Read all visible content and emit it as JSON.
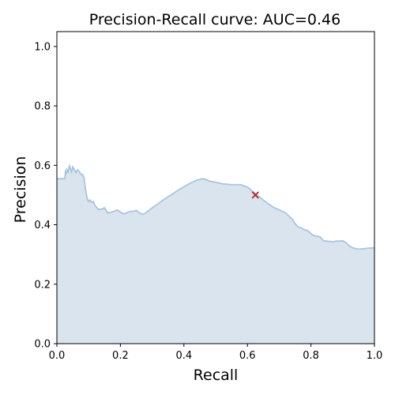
{
  "chart_data": {
    "type": "area",
    "title": "Precision-Recall curve: AUC=0.46",
    "xlabel": "Recall",
    "ylabel": "Precision",
    "xlim": [
      0,
      1
    ],
    "ylim": [
      0,
      1.05
    ],
    "xticks": [
      "0.0",
      "0.2",
      "0.4",
      "0.6",
      "0.8",
      "1.0"
    ],
    "yticks": [
      "0.0",
      "0.2",
      "0.4",
      "0.6",
      "0.8",
      "1.0"
    ],
    "grid": false,
    "colors": {
      "fill": "#d9e4ef",
      "line": "#aac4dd",
      "marker": "#b22222"
    },
    "series": [
      {
        "x": [
          0.0,
          0.025,
          0.027,
          0.03,
          0.032,
          0.035,
          0.038,
          0.04,
          0.043,
          0.046,
          0.05,
          0.055,
          0.06,
          0.065,
          0.07,
          0.075,
          0.08,
          0.085,
          0.09,
          0.095,
          0.1,
          0.105,
          0.11,
          0.115,
          0.12,
          0.13,
          0.14,
          0.15,
          0.16,
          0.17,
          0.18,
          0.19,
          0.2,
          0.21,
          0.22,
          0.23,
          0.24,
          0.25,
          0.26,
          0.27,
          0.28,
          0.3,
          0.32,
          0.34,
          0.36,
          0.38,
          0.4,
          0.42,
          0.44,
          0.46,
          0.47,
          0.48,
          0.5,
          0.52,
          0.55,
          0.58,
          0.585,
          0.6,
          0.625,
          0.65,
          0.68,
          0.7,
          0.72,
          0.73,
          0.74,
          0.75,
          0.76,
          0.77,
          0.775,
          0.79,
          0.8,
          0.81,
          0.82,
          0.83,
          0.84,
          0.85,
          0.87,
          0.88,
          0.89,
          0.9,
          0.91,
          0.92,
          0.93,
          0.94,
          0.95,
          0.97,
          0.99,
          1.0
        ],
        "y": [
          0.555,
          0.555,
          0.58,
          0.575,
          0.585,
          0.578,
          0.592,
          0.598,
          0.585,
          0.578,
          0.595,
          0.585,
          0.575,
          0.585,
          0.58,
          0.57,
          0.57,
          0.56,
          0.52,
          0.49,
          0.478,
          0.483,
          0.475,
          0.478,
          0.465,
          0.452,
          0.452,
          0.457,
          0.44,
          0.442,
          0.445,
          0.45,
          0.443,
          0.437,
          0.44,
          0.445,
          0.445,
          0.448,
          0.44,
          0.435,
          0.44,
          0.457,
          0.472,
          0.487,
          0.501,
          0.515,
          0.528,
          0.54,
          0.55,
          0.555,
          0.552,
          0.547,
          0.543,
          0.538,
          0.535,
          0.535,
          0.532,
          0.527,
          0.505,
          0.483,
          0.46,
          0.45,
          0.44,
          0.43,
          0.42,
          0.404,
          0.392,
          0.39,
          0.385,
          0.38,
          0.37,
          0.363,
          0.362,
          0.358,
          0.346,
          0.345,
          0.343,
          0.345,
          0.345,
          0.346,
          0.34,
          0.33,
          0.323,
          0.32,
          0.318,
          0.32,
          0.322,
          0.323
        ]
      }
    ],
    "marker": {
      "x": 0.625,
      "y": 0.5,
      "symbol": "x"
    }
  }
}
